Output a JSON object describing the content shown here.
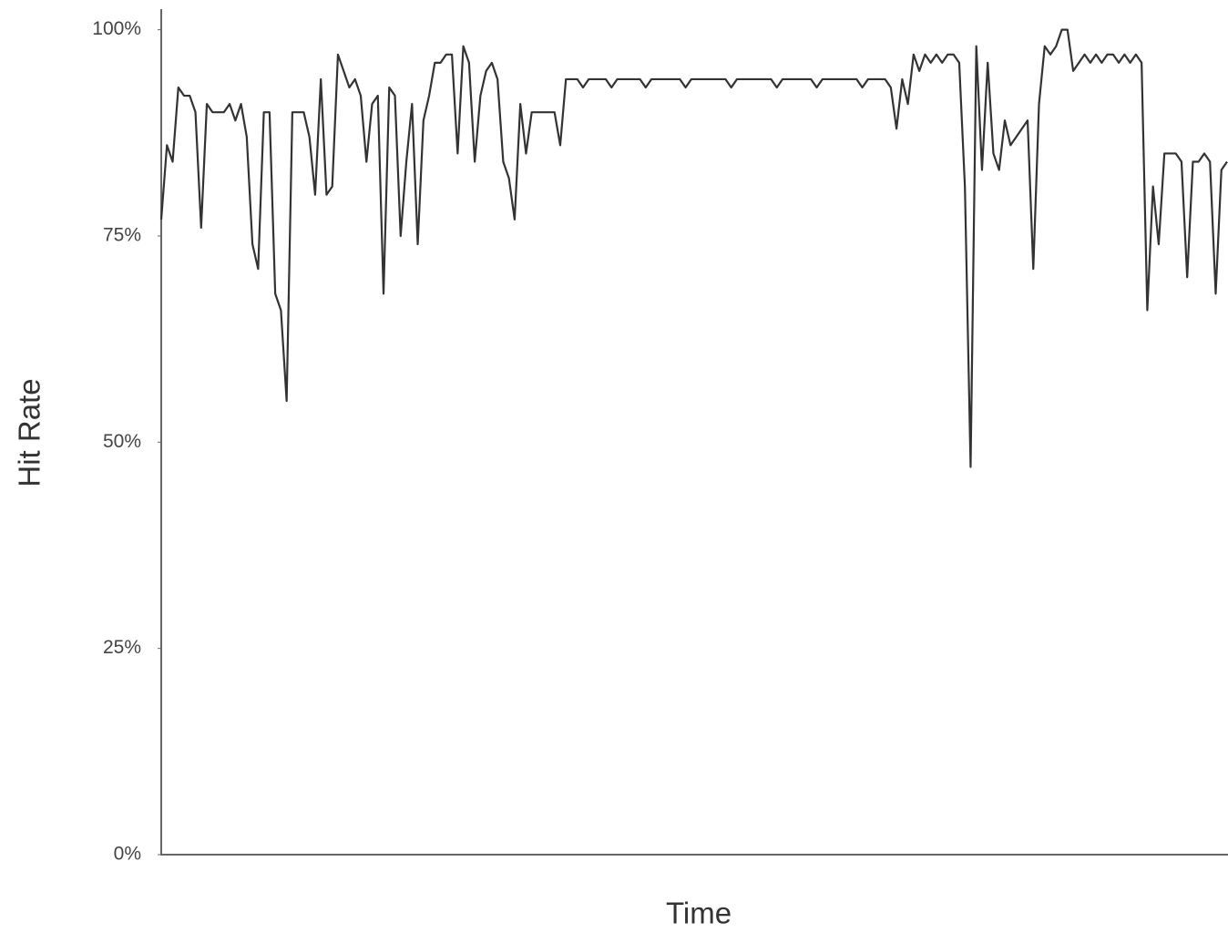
{
  "chart_data": {
    "type": "line",
    "xlabel": "Time",
    "ylabel": "Hit Rate",
    "series": [
      {
        "name": "Hit Rate",
        "color": "#333333",
        "values": [
          77,
          86,
          84,
          93,
          92,
          92,
          90,
          76,
          91,
          90,
          90,
          90,
          91,
          89,
          91,
          87,
          74,
          71,
          90,
          90,
          68,
          66,
          55,
          90,
          90,
          90,
          87,
          80,
          94,
          80,
          81,
          97,
          95,
          93,
          94,
          92,
          84,
          91,
          92,
          68,
          93,
          92,
          75,
          84,
          91,
          74,
          89,
          92,
          96,
          96,
          97,
          97,
          85,
          98,
          96,
          84,
          92,
          95,
          96,
          94,
          84,
          82,
          77,
          91,
          85,
          90,
          90,
          90,
          90,
          90,
          86,
          94,
          94,
          94,
          93,
          94,
          94,
          94,
          94,
          93,
          94,
          94,
          94,
          94,
          94,
          93,
          94,
          94,
          94,
          94,
          94,
          94,
          93,
          94,
          94,
          94,
          94,
          94,
          94,
          94,
          93,
          94,
          94,
          94,
          94,
          94,
          94,
          94,
          93,
          94,
          94,
          94,
          94,
          94,
          94,
          93,
          94,
          94,
          94,
          94,
          94,
          94,
          94,
          93,
          94,
          94,
          94,
          94,
          93,
          88,
          94,
          91,
          97,
          95,
          97,
          96,
          97,
          96,
          97,
          97,
          96,
          81,
          47,
          98,
          83,
          96,
          85,
          83,
          89,
          86,
          87,
          88,
          89,
          71,
          91,
          98,
          97,
          98,
          100,
          100,
          95,
          96,
          97,
          96,
          97,
          96,
          97,
          97,
          96,
          97,
          96,
          97,
          96,
          66,
          81,
          74,
          85,
          85,
          85,
          84,
          70,
          84,
          84,
          85,
          84,
          68,
          83,
          84
        ]
      }
    ],
    "ylim": [
      0,
      102.5
    ],
    "yticks": [
      {
        "value": 0,
        "label": "0%"
      },
      {
        "value": 25,
        "label": "25%"
      },
      {
        "value": 50,
        "label": "50%"
      },
      {
        "value": 75,
        "label": "75%"
      },
      {
        "value": 100,
        "label": "100%"
      }
    ],
    "grid": false
  }
}
